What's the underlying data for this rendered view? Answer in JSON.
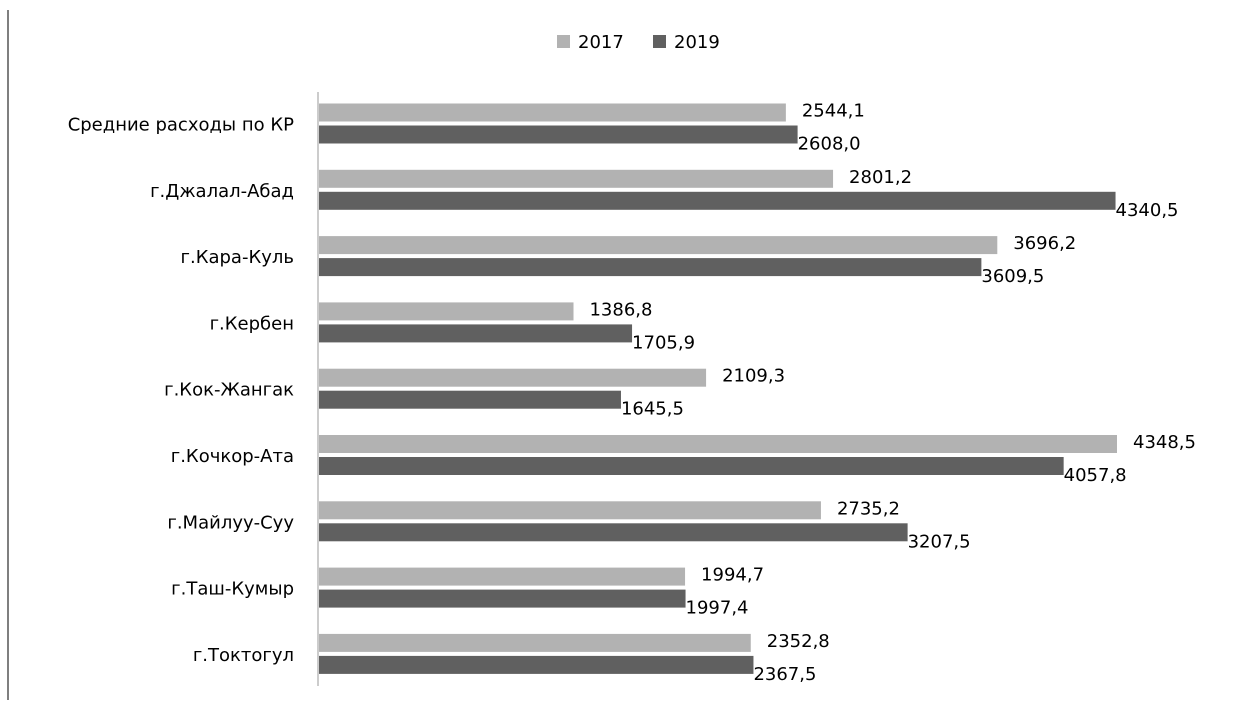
{
  "chart_data": {
    "type": "bar",
    "orientation": "horizontal",
    "categories": [
      "Средние расходы по КР",
      "г.Джалал-Абад",
      "г.Кара-Куль",
      "г.Кербен",
      "г.Кок-Жангак",
      "г.Кочкор-Ата",
      "г.Майлуу-Суу",
      "г.Таш-Кумыр",
      "г.Токтогул"
    ],
    "series": [
      {
        "name": "2017",
        "color": "#b2b2b2",
        "values": [
          2544.1,
          2801.2,
          3696.2,
          1386.8,
          2109.3,
          4348.5,
          2735.2,
          1994.7,
          2352.8
        ],
        "labels": [
          "2544,1",
          "2801,2",
          "3696,2",
          "1386,8",
          "2109,3",
          "4348,5",
          "2735,2",
          "1994,7",
          "2352,8"
        ]
      },
      {
        "name": "2019",
        "color": "#606060",
        "values": [
          2608.0,
          4340.5,
          3609.5,
          1705.9,
          1645.5,
          4057.8,
          3207.5,
          1997.4,
          2367.5
        ],
        "labels": [
          "2608,0",
          "4340,5",
          "3609,5",
          "1705,9",
          "1645,5",
          "4057,8",
          "3207,5",
          "1997,4",
          "2367,5"
        ]
      }
    ],
    "xlim": [
      0,
      4348.5
    ],
    "grid": false,
    "legend_position": "top-center",
    "title": "",
    "xlabel": "",
    "ylabel": ""
  }
}
